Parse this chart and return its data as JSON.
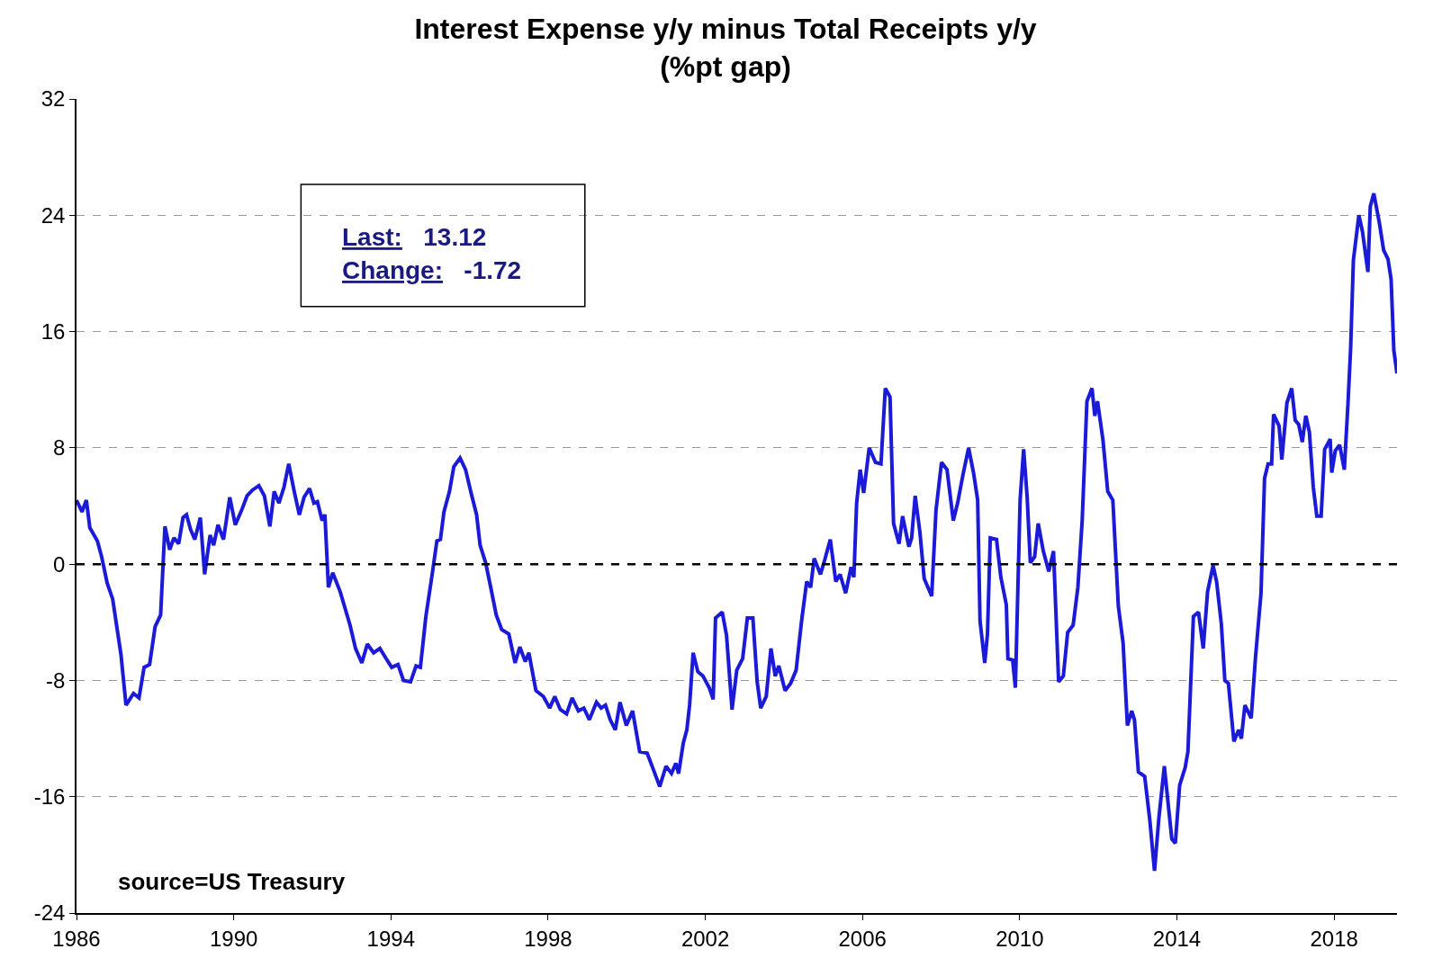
{
  "chart_data": {
    "type": "line",
    "title": "Interest Expense y/y minus Total Receipts y/y",
    "subtitle": "(%pt gap)",
    "annotations": [
      "Last: 13.12",
      "Change: -1.72",
      "source=US Treasury"
    ],
    "x": [
      1986.0,
      1986.14,
      1986.25,
      1986.34,
      1986.53,
      1986.64,
      1986.78,
      1986.92,
      1987.13,
      1987.26,
      1987.45,
      1987.59,
      1987.72,
      1987.86,
      1988.0,
      1988.14,
      1988.25,
      1988.37,
      1988.48,
      1988.6,
      1988.71,
      1988.8,
      1988.9,
      1989.01,
      1989.15,
      1989.26,
      1989.4,
      1989.49,
      1989.6,
      1989.74,
      1989.9,
      1990.04,
      1990.2,
      1990.34,
      1990.48,
      1990.64,
      1990.78,
      1990.92,
      1991.03,
      1991.15,
      1991.28,
      1991.4,
      1991.54,
      1991.67,
      1991.79,
      1991.93,
      1992.04,
      1992.13,
      1992.25,
      1992.32,
      1992.41,
      1992.52,
      1992.71,
      1992.96,
      1993.1,
      1993.26,
      1993.4,
      1993.56,
      1993.72,
      1993.88,
      1994.02,
      1994.18,
      1994.32,
      1994.5,
      1994.64,
      1994.75,
      1994.89,
      1995.05,
      1995.17,
      1995.26,
      1995.35,
      1995.49,
      1995.6,
      1995.76,
      1995.9,
      1996.04,
      1996.18,
      1996.27,
      1996.41,
      1996.54,
      1996.68,
      1996.82,
      1997.0,
      1997.16,
      1997.28,
      1997.42,
      1997.51,
      1997.69,
      1997.88,
      1998.04,
      1998.17,
      1998.31,
      1998.47,
      1998.61,
      1998.77,
      1998.91,
      1999.05,
      1999.23,
      1999.35,
      1999.46,
      1999.58,
      1999.71,
      1999.83,
      1999.99,
      2000.15,
      2000.33,
      2000.52,
      2000.66,
      2000.84,
      2001.0,
      2001.14,
      2001.25,
      2001.32,
      2001.44,
      2001.53,
      2001.6,
      2001.69,
      2001.81,
      2001.94,
      2002.1,
      2002.2,
      2002.26,
      2002.43,
      2002.54,
      2002.68,
      2002.8,
      2002.95,
      2003.07,
      2003.21,
      2003.32,
      2003.41,
      2003.55,
      2003.67,
      2003.78,
      2003.87,
      2004.03,
      2004.17,
      2004.31,
      2004.45,
      2004.58,
      2004.68,
      2004.77,
      2004.93,
      2005.04,
      2005.18,
      2005.32,
      2005.43,
      2005.57,
      2005.71,
      2005.78,
      2005.85,
      2005.94,
      2006.03,
      2006.17,
      2006.33,
      2006.47,
      2006.58,
      2006.7,
      2006.79,
      2006.93,
      2007.02,
      2007.18,
      2007.25,
      2007.34,
      2007.46,
      2007.57,
      2007.76,
      2007.87,
      2008.01,
      2008.15,
      2008.31,
      2008.42,
      2008.56,
      2008.7,
      2008.83,
      2008.93,
      2008.99,
      2009.11,
      2009.18,
      2009.25,
      2009.41,
      2009.52,
      2009.66,
      2009.7,
      2009.82,
      2009.89,
      2010.01,
      2010.1,
      2010.19,
      2010.27,
      2010.38,
      2010.47,
      2010.6,
      2010.74,
      2010.86,
      2010.99,
      2011.11,
      2011.22,
      2011.36,
      2011.48,
      2011.59,
      2011.71,
      2011.84,
      2011.91,
      2011.98,
      2012.12,
      2012.24,
      2012.37,
      2012.51,
      2012.63,
      2012.74,
      2012.85,
      2012.92,
      2013.02,
      2013.18,
      2013.31,
      2013.43,
      2013.54,
      2013.68,
      2013.77,
      2013.87,
      2013.96,
      2014.07,
      2014.21,
      2014.28,
      2014.42,
      2014.55,
      2014.67,
      2014.78,
      2014.92,
      2015.01,
      2015.13,
      2015.22,
      2015.31,
      2015.45,
      2015.57,
      2015.64,
      2015.73,
      2015.89,
      2016.0,
      2016.14,
      2016.23,
      2016.32,
      2016.41,
      2016.46,
      2016.6,
      2016.67,
      2016.8,
      2016.92,
      2017.01,
      2017.1,
      2017.19,
      2017.28,
      2017.37,
      2017.47,
      2017.56,
      2017.67,
      2017.76,
      2017.9,
      2017.94,
      2018.03,
      2018.14,
      2018.26,
      2018.35,
      2018.42,
      2018.49,
      2018.63,
      2018.72,
      2018.86,
      2018.92,
      2019.01,
      2019.15,
      2019.26,
      2019.37,
      2019.45,
      2019.52,
      2019.6
    ],
    "series": [
      {
        "color": "#1a1ad8",
        "values": [
          4.4,
          3.6,
          4.4,
          2.5,
          1.6,
          0.5,
          -1.3,
          -2.4,
          -6.2,
          -9.7,
          -8.9,
          -9.2,
          -7.1,
          -6.9,
          -4.3,
          -3.5,
          2.6,
          1.0,
          1.8,
          1.4,
          3.2,
          3.4,
          2.4,
          1.7,
          3.2,
          -0.7,
          2.0,
          1.3,
          2.7,
          1.7,
          4.6,
          2.7,
          3.7,
          4.7,
          5.1,
          5.4,
          4.7,
          2.6,
          5.0,
          4.2,
          5.3,
          6.9,
          5.0,
          3.4,
          4.6,
          5.2,
          4.2,
          4.3,
          3.0,
          3.4,
          -1.6,
          -0.6,
          -1.9,
          -4.2,
          -5.8,
          -6.8,
          -5.5,
          -6.1,
          -5.8,
          -6.5,
          -7.1,
          -6.9,
          -8.0,
          -8.1,
          -7.0,
          -7.1,
          -3.6,
          -0.7,
          1.6,
          1.7,
          3.6,
          5.0,
          6.7,
          7.3,
          6.5,
          4.9,
          3.4,
          1.3,
          0.1,
          -1.6,
          -3.5,
          -4.5,
          -4.8,
          -6.8,
          -5.7,
          -6.7,
          -6.1,
          -8.7,
          -9.1,
          -9.9,
          -9.1,
          -10.0,
          -10.3,
          -9.2,
          -10.1,
          -9.9,
          -10.7,
          -9.5,
          -9.9,
          -9.7,
          -10.7,
          -11.4,
          -9.5,
          -11.1,
          -10.1,
          -12.9,
          -13.0,
          -14.0,
          -15.3,
          -13.9,
          -14.4,
          -13.7,
          -14.4,
          -12.3,
          -11.4,
          -9.7,
          -6.1,
          -7.4,
          -7.7,
          -8.5,
          -9.3,
          -3.7,
          -3.3,
          -4.9,
          -10.0,
          -7.3,
          -6.5,
          -3.7,
          -3.7,
          -8.1,
          -9.9,
          -9.1,
          -5.8,
          -7.7,
          -7.0,
          -8.7,
          -8.2,
          -7.3,
          -3.9,
          -1.2,
          -1.6,
          0.4,
          -0.7,
          0.3,
          1.7,
          -1.2,
          -0.7,
          -2.0,
          -0.2,
          -0.9,
          4.2,
          6.5,
          4.9,
          8.0,
          7.0,
          6.9,
          12.1,
          11.5,
          2.8,
          1.4,
          3.3,
          1.2,
          1.8,
          4.7,
          2.2,
          -1.0,
          -2.2,
          3.7,
          7.0,
          6.5,
          3.0,
          4.2,
          6.2,
          8.0,
          6.2,
          4.4,
          -3.9,
          -6.8,
          -4.8,
          1.8,
          1.7,
          -0.9,
          -2.8,
          -6.5,
          -6.6,
          -8.5,
          4.4,
          7.9,
          4.6,
          0.1,
          0.5,
          2.8,
          0.9,
          -0.5,
          0.9,
          -8.1,
          -7.7,
          -4.7,
          -4.2,
          -1.6,
          3.0,
          11.2,
          12.1,
          10.2,
          11.2,
          8.5,
          5.0,
          4.4,
          -2.9,
          -5.4,
          -11.1,
          -10.1,
          -10.7,
          -14.3,
          -14.6,
          -17.6,
          -21.1,
          -17.5,
          -13.9,
          -16.3,
          -18.9,
          -19.2,
          -15.2,
          -14.0,
          -12.9,
          -3.6,
          -3.3,
          -5.8,
          -1.9,
          -0.1,
          -1.2,
          -4.1,
          -8.0,
          -8.2,
          -12.2,
          -11.4,
          -12.0,
          -9.7,
          -10.6,
          -6.4,
          -2.0,
          5.9,
          6.9,
          6.9,
          10.3,
          9.5,
          7.2,
          11.1,
          12.1,
          9.9,
          9.6,
          8.4,
          10.2,
          9.1,
          5.3,
          3.3,
          3.3,
          7.9,
          8.6,
          6.3,
          7.8,
          8.2,
          6.5,
          10.9,
          14.8,
          20.9,
          24.0,
          22.9,
          20.1,
          24.6,
          25.5,
          23.5,
          21.6,
          21.0,
          19.6,
          14.7,
          13.12
        ]
      }
    ],
    "xlim": [
      1986,
      2019.6
    ],
    "xticks": [
      1986,
      1990,
      1994,
      1998,
      2002,
      2006,
      2010,
      2014,
      2018
    ],
    "ylim": [
      -24,
      32
    ],
    "yticks": [
      -24,
      -16,
      -8,
      0,
      8,
      16,
      24,
      32
    ],
    "ref_lines": [
      {
        "axis": "y",
        "value": 0,
        "color": "#000000",
        "line_style": "dashed"
      }
    ],
    "grid": "y",
    "line_style": "solid",
    "marker": "none"
  }
}
